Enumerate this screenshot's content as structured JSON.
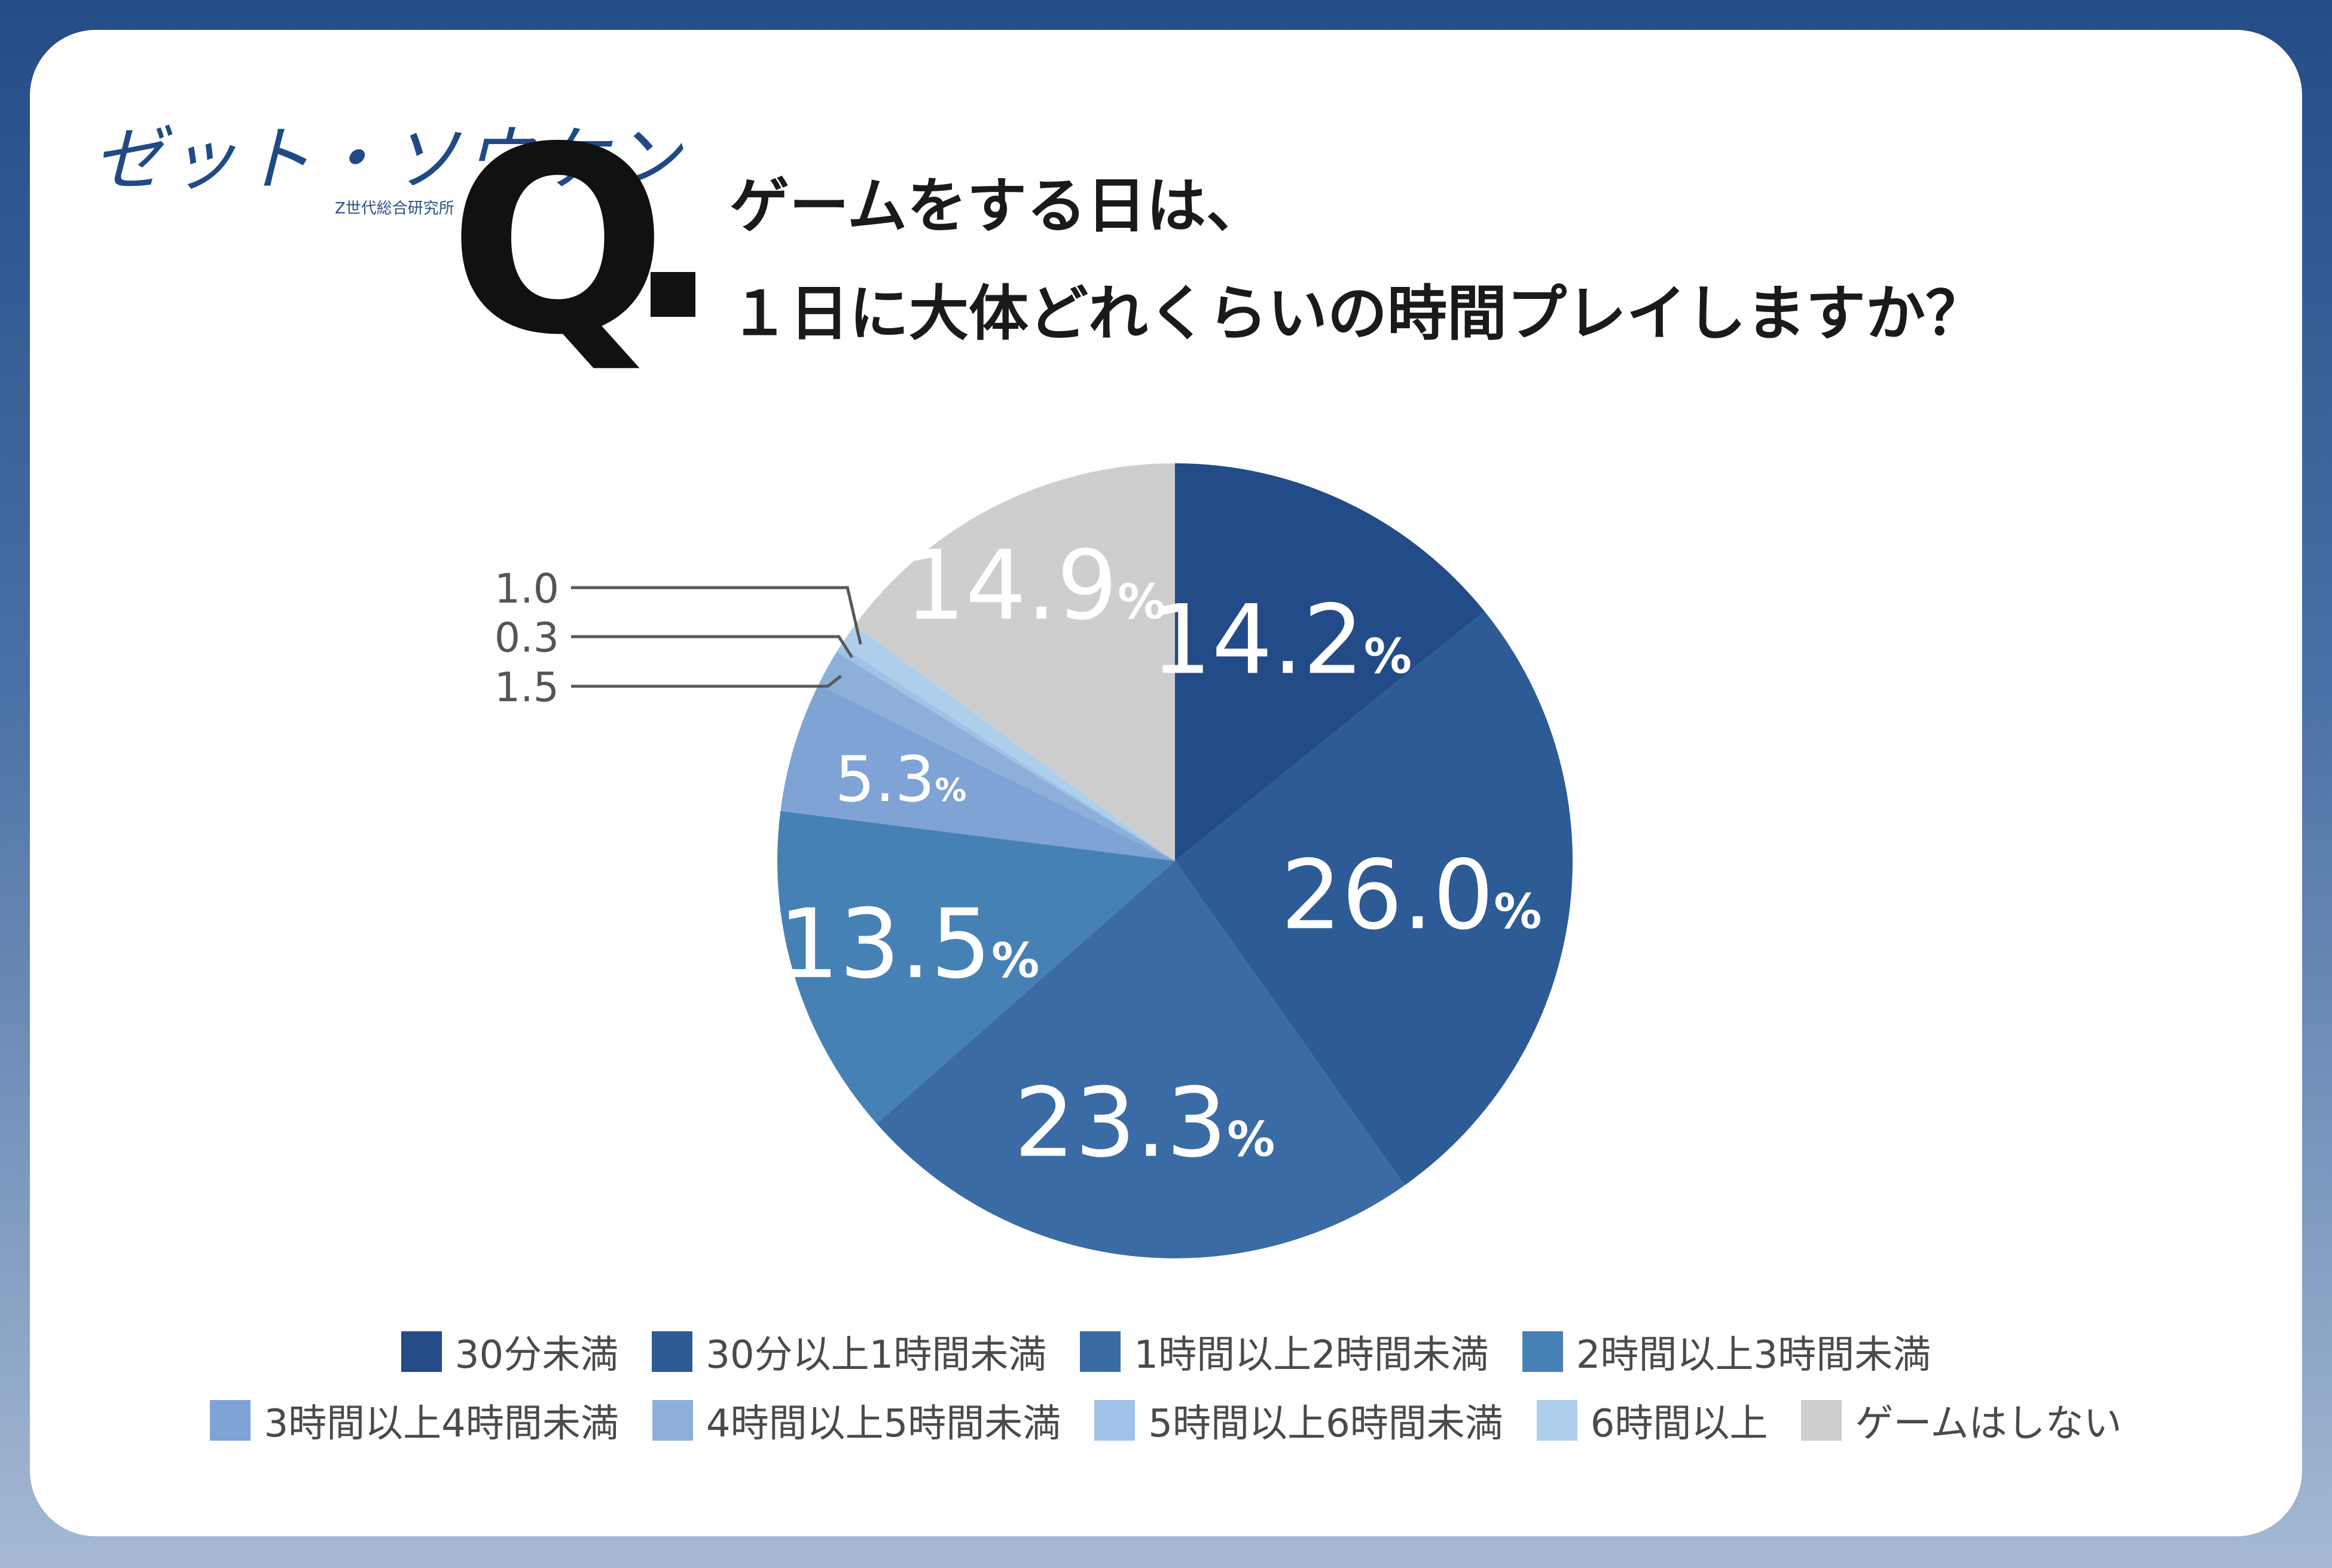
{
  "logo": {
    "main": "ゼット・ソウケン",
    "sub": "Z世代総合研究所"
  },
  "question": {
    "mark": "Q",
    "line1": "ゲームをする日は、",
    "line2": "１日に大体どれくらいの時間プレイしますか？"
  },
  "chart_data": {
    "type": "pie",
    "start_angle_deg": 0,
    "direction": "clockwise",
    "unit": "%",
    "categories": [
      "30分未満",
      "30分以上1時間未満",
      "1時間以上2時間未満",
      "2時間以上3時間未満",
      "3時間以上4時間未満",
      "4時間以上5時間未満",
      "5時間以上6時間未満",
      "6時間以上",
      "ゲームはしない"
    ],
    "values": [
      14.2,
      26.0,
      23.3,
      13.5,
      5.3,
      1.5,
      0.3,
      1.0,
      14.9
    ],
    "labels": [
      "14.2",
      "26.0",
      "23.3",
      "13.5",
      "5.3",
      "1.5",
      "0.3",
      "1.0",
      "14.9"
    ],
    "colors": [
      "#234b87",
      "#2c5b96",
      "#3a6ba5",
      "#4681b6",
      "#7ea3d4",
      "#8cb0da",
      "#a0c2e6",
      "#aecfec",
      "#cecece"
    ],
    "legend_placement": "bottom"
  }
}
